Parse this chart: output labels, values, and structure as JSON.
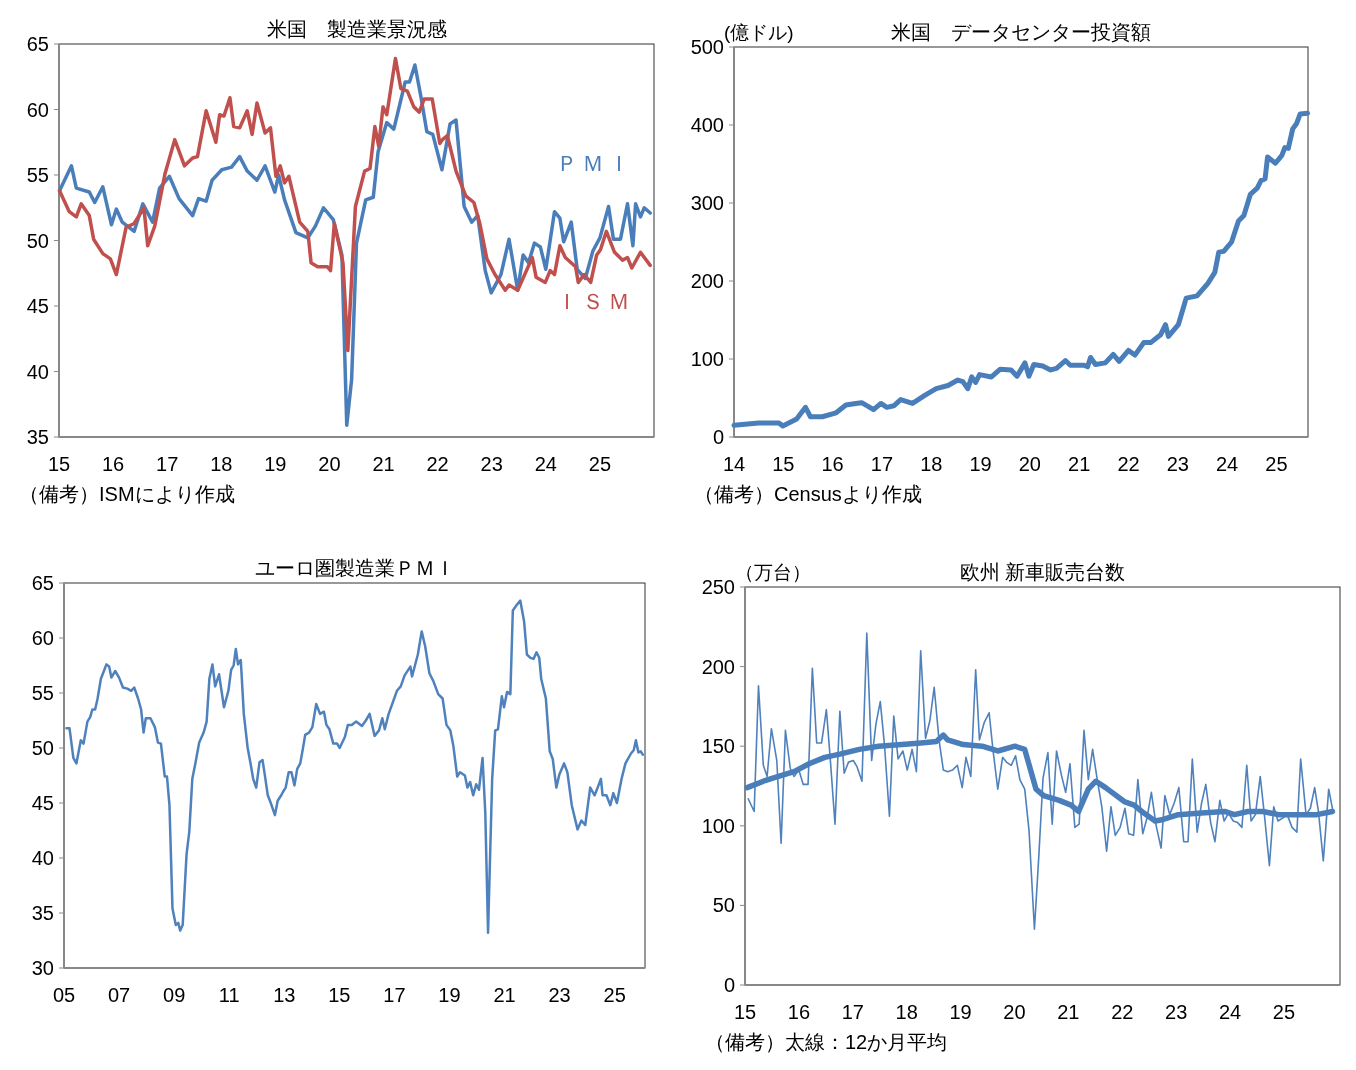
{
  "chart_data": [
    {
      "type": "line",
      "title": "米国　製造業景況感",
      "xlim": [
        2015,
        2026
      ],
      "xticks": [
        {
          "value": 2015,
          "label": "15"
        },
        {
          "value": 2016,
          "label": "16"
        },
        {
          "value": 2017,
          "label": "17"
        },
        {
          "value": 2018,
          "label": "18"
        },
        {
          "value": 2019,
          "label": "19"
        },
        {
          "value": 2020,
          "label": "20"
        },
        {
          "value": 2021,
          "label": "21"
        },
        {
          "value": 2022,
          "label": "22"
        },
        {
          "value": 2023,
          "label": "23"
        },
        {
          "value": 2024,
          "label": "24"
        },
        {
          "value": 2025,
          "label": "25"
        }
      ],
      "ylim": [
        35,
        65
      ],
      "yticks": [
        35,
        40,
        45,
        50,
        55,
        60,
        65
      ],
      "annotations": [
        "（備考）ISMにより作成"
      ],
      "series": [
        {
          "name": "ＰＭＩ",
          "color": "#4a7ebb",
          "x": [
            2015.01,
            2015.23,
            2015.32,
            2015.56,
            2015.66,
            2015.81,
            2015.97,
            2016.06,
            2016.17,
            2016.39,
            2016.55,
            2016.73,
            2016.86,
            2017.04,
            2017.22,
            2017.47,
            2017.58,
            2017.72,
            2017.83,
            2018.01,
            2018.19,
            2018.34,
            2018.48,
            2018.66,
            2018.81,
            2018.99,
            2019.06,
            2019.17,
            2019.38,
            2019.6,
            2019.74,
            2019.89,
            2020.07,
            2020.23,
            2020.32,
            2020.41,
            2020.5,
            2020.67,
            2020.81,
            2020.9,
            2021.06,
            2021.19,
            2021.4,
            2021.48,
            2021.58,
            2021.69,
            2021.8,
            2021.91,
            2022.08,
            2022.23,
            2022.34,
            2022.49,
            2022.63,
            2022.74,
            2022.88,
            2022.99,
            2023.17,
            2023.32,
            2023.48,
            2023.58,
            2023.68,
            2023.79,
            2023.9,
            2024.0,
            2024.16,
            2024.26,
            2024.33,
            2024.47,
            2024.58,
            2024.73,
            2024.87,
            2025.0,
            2025.16,
            2025.25,
            2025.38,
            2025.51,
            2025.61,
            2025.66,
            2025.75,
            2025.82,
            2025.93
          ],
          "values": [
            53.8,
            55.7,
            54.0,
            53.7,
            52.9,
            54.1,
            51.2,
            52.4,
            51.4,
            50.7,
            52.8,
            51.4,
            54.0,
            54.9,
            53.2,
            51.9,
            53.2,
            53.0,
            54.6,
            55.4,
            55.6,
            56.4,
            55.3,
            54.6,
            55.7,
            53.7,
            55.0,
            53.1,
            50.6,
            50.2,
            51.1,
            52.5,
            51.6,
            48.9,
            35.9,
            39.4,
            49.8,
            53.1,
            53.3,
            56.8,
            59.0,
            58.5,
            62.1,
            62.1,
            63.4,
            61.0,
            58.3,
            58.1,
            55.4,
            58.9,
            59.2,
            52.6,
            51.4,
            51.9,
            47.7,
            46.0,
            47.4,
            50.1,
            46.2,
            48.9,
            48.3,
            49.8,
            49.5,
            47.8,
            52.2,
            51.7,
            49.9,
            51.4,
            47.8,
            47.1,
            49.2,
            50.2,
            52.6,
            50.1,
            50.1,
            52.8,
            49.6,
            52.8,
            51.8,
            52.5,
            52.1
          ]
        },
        {
          "name": "ＩＳＭ",
          "color": "#c0504d",
          "x": [
            2015.01,
            2015.19,
            2015.32,
            2015.41,
            2015.56,
            2015.64,
            2015.81,
            2015.95,
            2016.06,
            2016.24,
            2016.39,
            2016.57,
            2016.64,
            2016.77,
            2016.96,
            2017.14,
            2017.32,
            2017.47,
            2017.56,
            2017.72,
            2017.9,
            2017.97,
            2018.05,
            2018.16,
            2018.23,
            2018.34,
            2018.48,
            2018.57,
            2018.66,
            2018.81,
            2018.91,
            2019.01,
            2019.09,
            2019.17,
            2019.25,
            2019.45,
            2019.6,
            2019.66,
            2019.78,
            2019.96,
            2020.02,
            2020.09,
            2020.25,
            2020.34,
            2020.48,
            2020.65,
            2020.75,
            2020.84,
            2020.91,
            2020.99,
            2021.06,
            2021.22,
            2021.32,
            2021.44,
            2021.56,
            2021.66,
            2021.75,
            2021.9,
            2022.04,
            2022.09,
            2022.18,
            2022.34,
            2022.52,
            2022.67,
            2022.78,
            2022.91,
            2023.06,
            2023.25,
            2023.32,
            2023.48,
            2023.61,
            2023.75,
            2023.82,
            2023.99,
            2024.08,
            2024.16,
            2024.26,
            2024.36,
            2024.55,
            2024.6,
            2024.71,
            2024.83,
            2024.94,
            2025.01,
            2025.12,
            2025.27,
            2025.42,
            2025.51,
            2025.59,
            2025.75,
            2025.93
          ],
          "values": [
            53.8,
            52.2,
            51.8,
            52.8,
            51.9,
            50.1,
            49.0,
            48.6,
            47.4,
            51.0,
            51.3,
            52.5,
            49.6,
            51.1,
            55.1,
            57.7,
            55.7,
            56.3,
            56.4,
            59.9,
            57.5,
            59.6,
            59.5,
            60.9,
            58.7,
            58.6,
            59.9,
            58.1,
            60.5,
            58.2,
            58.6,
            54.9,
            55.7,
            54.4,
            54.9,
            51.4,
            50.7,
            48.3,
            48.0,
            48.0,
            47.7,
            51.3,
            48.3,
            41.6,
            52.6,
            55.3,
            55.5,
            58.7,
            57.2,
            60.2,
            59.6,
            63.9,
            61.6,
            61.4,
            60.2,
            59.8,
            60.8,
            60.8,
            57.4,
            57.7,
            58.0,
            55.3,
            53.4,
            52.9,
            51.3,
            48.6,
            47.4,
            46.2,
            46.6,
            46.2,
            47.4,
            48.7,
            47.2,
            46.8,
            47.7,
            47.4,
            49.6,
            48.7,
            48.0,
            46.8,
            47.4,
            46.8,
            48.9,
            49.3,
            50.7,
            49.1,
            48.5,
            48.7,
            47.9,
            49.1,
            48.1
          ]
        }
      ]
    },
    {
      "type": "line",
      "title": "米国　データセンター投資額",
      "ylabel": "(億ドル)",
      "xlim": [
        2014,
        2025.64
      ],
      "xticks": [
        {
          "value": 2014,
          "label": "14"
        },
        {
          "value": 2015,
          "label": "15"
        },
        {
          "value": 2016,
          "label": "16"
        },
        {
          "value": 2017,
          "label": "17"
        },
        {
          "value": 2018,
          "label": "18"
        },
        {
          "value": 2019,
          "label": "19"
        },
        {
          "value": 2020,
          "label": "20"
        },
        {
          "value": 2021,
          "label": "21"
        },
        {
          "value": 2022,
          "label": "22"
        },
        {
          "value": 2023,
          "label": "23"
        },
        {
          "value": 2024,
          "label": "24"
        },
        {
          "value": 2025,
          "label": "25"
        }
      ],
      "ylim": [
        0,
        500
      ],
      "yticks": [
        0,
        100,
        200,
        300,
        400,
        500
      ],
      "annotations": [
        "（備考）Censusより作成"
      ],
      "series": [
        {
          "color": "#4a7ebb",
          "x": [
            2014.0,
            2014.5,
            2014.91,
            2014.99,
            2015.27,
            2015.45,
            2015.55,
            2015.79,
            2016.07,
            2016.27,
            2016.47,
            2016.59,
            2016.83,
            2016.98,
            2017.1,
            2017.24,
            2017.38,
            2017.62,
            2017.86,
            2018.1,
            2018.34,
            2018.54,
            2018.64,
            2018.74,
            2018.82,
            2018.9,
            2018.98,
            2019.22,
            2019.4,
            2019.62,
            2019.74,
            2019.9,
            2019.98,
            2020.08,
            2020.26,
            2020.42,
            2020.54,
            2020.72,
            2020.82,
            2021.1,
            2021.17,
            2021.23,
            2021.33,
            2021.53,
            2021.69,
            2021.81,
            2022.0,
            2022.13,
            2022.31,
            2022.45,
            2022.65,
            2022.75,
            2022.81,
            2023.01,
            2023.17,
            2023.39,
            2023.61,
            2023.75,
            2023.83,
            2023.93,
            2024.09,
            2024.23,
            2024.34,
            2024.47,
            2024.61,
            2024.69,
            2024.77,
            2024.82,
            2024.98,
            2025.11,
            2025.17,
            2025.24,
            2025.33,
            2025.41,
            2025.48,
            2025.63
          ],
          "values": [
            15,
            18,
            18,
            14,
            23,
            38,
            26,
            26,
            31,
            41,
            43,
            44,
            35,
            43,
            38,
            40,
            48,
            43,
            53,
            62,
            66,
            73,
            71,
            62,
            77,
            70,
            80,
            77,
            87,
            86,
            78,
            95,
            78,
            93,
            91,
            86,
            88,
            98,
            92,
            92,
            90,
            102,
            93,
            95,
            106,
            97,
            111,
            105,
            121,
            121,
            131,
            144,
            129,
            144,
            178,
            181,
            197,
            211,
            237,
            238,
            250,
            277,
            284,
            311,
            319,
            329,
            331,
            359,
            351,
            361,
            371,
            370,
            395,
            402,
            414,
            415
          ]
        }
      ]
    },
    {
      "type": "line",
      "title": "ユーロ圏製造業ＰＭＩ",
      "xlim": [
        2005,
        2026.1
      ],
      "xticks": [
        {
          "value": 2005,
          "label": "05"
        },
        {
          "value": 2007,
          "label": "07"
        },
        {
          "value": 2009,
          "label": "09"
        },
        {
          "value": 2011,
          "label": "11"
        },
        {
          "value": 2013,
          "label": "13"
        },
        {
          "value": 2015,
          "label": "15"
        },
        {
          "value": 2017,
          "label": "17"
        },
        {
          "value": 2019,
          "label": "19"
        },
        {
          "value": 2021,
          "label": "21"
        },
        {
          "value": 2023,
          "label": "23"
        },
        {
          "value": 2025,
          "label": "25"
        }
      ],
      "ylim": [
        30,
        65
      ],
      "yticks": [
        30,
        35,
        40,
        45,
        50,
        55,
        60,
        65
      ],
      "series": [
        {
          "color": "#4f81bd",
          "x": [
            2005.09,
            2005.2,
            2005.34,
            2005.45,
            2005.61,
            2005.71,
            2005.85,
            2005.95,
            2006.03,
            2006.13,
            2006.22,
            2006.34,
            2006.45,
            2006.54,
            2006.64,
            2006.72,
            2006.86,
            2007.0,
            2007.14,
            2007.3,
            2007.44,
            2007.55,
            2007.69,
            2007.8,
            2007.89,
            2007.97,
            2008.14,
            2008.3,
            2008.41,
            2008.52,
            2008.66,
            2008.74,
            2008.83,
            2008.94,
            2009.06,
            2009.15,
            2009.22,
            2009.31,
            2009.45,
            2009.55,
            2009.66,
            2009.77,
            2009.91,
            2010.07,
            2010.18,
            2010.28,
            2010.39,
            2010.49,
            2010.63,
            2010.81,
            2010.97,
            2011.07,
            2011.16,
            2011.24,
            2011.32,
            2011.42,
            2011.53,
            2011.67,
            2011.76,
            2011.87,
            2011.98,
            2012.1,
            2012.21,
            2012.29,
            2012.4,
            2012.51,
            2012.66,
            2012.76,
            2012.89,
            2012.95,
            2013.05,
            2013.16,
            2013.26,
            2013.37,
            2013.47,
            2013.58,
            2013.68,
            2013.76,
            2013.9,
            2014.02,
            2014.16,
            2014.3,
            2014.44,
            2014.53,
            2014.64,
            2014.78,
            2014.92,
            2015.01,
            2015.2,
            2015.31,
            2015.45,
            2015.61,
            2015.82,
            2015.96,
            2016.1,
            2016.28,
            2016.44,
            2016.56,
            2016.65,
            2016.79,
            2016.95,
            2017.09,
            2017.23,
            2017.37,
            2017.58,
            2017.64,
            2017.85,
            2017.99,
            2018.12,
            2018.27,
            2018.41,
            2018.59,
            2018.75,
            2018.89,
            2019.03,
            2019.14,
            2019.28,
            2019.38,
            2019.56,
            2019.65,
            2019.75,
            2019.86,
            2019.97,
            2020.07,
            2020.2,
            2020.3,
            2020.4,
            2020.55,
            2020.66,
            2020.76,
            2020.9,
            2020.98,
            2021.09,
            2021.21,
            2021.3,
            2021.44,
            2021.57,
            2021.71,
            2021.81,
            2021.94,
            2022.05,
            2022.16,
            2022.26,
            2022.33,
            2022.5,
            2022.64,
            2022.75,
            2022.88,
            2022.99,
            2023.16,
            2023.28,
            2023.44,
            2023.65,
            2023.79,
            2023.93,
            2024.11,
            2024.27,
            2024.38,
            2024.5,
            2024.56,
            2024.7,
            2024.84,
            2024.95,
            2025.08,
            2025.25,
            2025.39,
            2025.59,
            2025.69,
            2025.77,
            2025.86,
            2025.94,
            2026.02
          ],
          "values": [
            51.8,
            51.8,
            49.1,
            48.6,
            50.7,
            50.4,
            52.4,
            52.8,
            53.5,
            53.5,
            54.5,
            56.3,
            57.0,
            57.6,
            57.4,
            56.4,
            57.0,
            56.4,
            55.5,
            55.4,
            55.2,
            55.5,
            54.5,
            53.5,
            51.4,
            52.7,
            52.7,
            51.9,
            50.5,
            50.4,
            47.4,
            47.4,
            44.8,
            35.4,
            33.9,
            34.1,
            33.4,
            33.9,
            40.3,
            42.4,
            47.2,
            48.6,
            50.5,
            51.4,
            52.4,
            56.3,
            57.6,
            55.6,
            56.7,
            53.7,
            55.2,
            57.1,
            57.5,
            59.0,
            57.6,
            58.0,
            53.1,
            50.0,
            48.8,
            47.2,
            46.4,
            48.7,
            48.9,
            47.6,
            45.7,
            45.0,
            43.9,
            45.2,
            45.7,
            46.0,
            46.4,
            47.8,
            47.8,
            46.6,
            48.1,
            48.6,
            50.0,
            51.2,
            51.4,
            51.9,
            54.0,
            53.1,
            53.3,
            52.1,
            51.7,
            50.4,
            50.4,
            50.0,
            51.0,
            52.1,
            52.1,
            52.4,
            52.0,
            52.5,
            53.1,
            51.1,
            51.6,
            52.7,
            51.7,
            53.1,
            54.2,
            55.2,
            55.6,
            56.6,
            57.4,
            56.5,
            58.5,
            60.6,
            59.2,
            56.8,
            56.1,
            54.9,
            54.5,
            52.1,
            51.6,
            50.2,
            47.4,
            47.8,
            47.5,
            46.4,
            46.9,
            45.7,
            46.7,
            46.2,
            49.1,
            44.1,
            33.2,
            47.2,
            51.6,
            51.7,
            54.7,
            53.7,
            55.1,
            54.9,
            62.5,
            63.0,
            63.4,
            61.5,
            58.5,
            58.2,
            58.1,
            58.7,
            58.2,
            56.3,
            54.5,
            49.7,
            49.0,
            46.4,
            47.6,
            48.6,
            47.8,
            44.8,
            42.6,
            43.4,
            43.0,
            46.4,
            45.7,
            46.4,
            47.2,
            45.7,
            45.7,
            44.8,
            45.9,
            45.0,
            47.2,
            48.6,
            49.5,
            49.8,
            50.7,
            49.6,
            49.7,
            49.4
          ]
        }
      ]
    },
    {
      "type": "line",
      "title": "欧州 新車販売台数",
      "ylabel": "（万台）",
      "xlim": [
        2015,
        2026.04
      ],
      "xticks": [
        {
          "value": 2015,
          "label": "15"
        },
        {
          "value": 2016,
          "label": "16"
        },
        {
          "value": 2017,
          "label": "17"
        },
        {
          "value": 2018,
          "label": "18"
        },
        {
          "value": 2019,
          "label": "19"
        },
        {
          "value": 2020,
          "label": "20"
        },
        {
          "value": 2021,
          "label": "21"
        },
        {
          "value": 2022,
          "label": "22"
        },
        {
          "value": 2023,
          "label": "23"
        },
        {
          "value": 2024,
          "label": "24"
        },
        {
          "value": 2025,
          "label": "25"
        }
      ],
      "ylim": [
        0,
        250
      ],
      "yticks": [
        0,
        50,
        100,
        150,
        200,
        250
      ],
      "annotations": [
        "（備考）太線：12か月平均"
      ],
      "series": [
        {
          "color": "#4f81bd",
          "x": [
            2015.06,
            2015.17,
            2015.25,
            2015.34,
            2015.41,
            2015.49,
            2015.59,
            2015.67,
            2015.75,
            2015.84,
            2015.91,
            2016.0,
            2016.08,
            2016.17,
            2016.25,
            2016.33,
            2016.42,
            2016.51,
            2016.58,
            2016.67,
            2016.76,
            2016.84,
            2016.92,
            2017.01,
            2017.08,
            2017.17,
            2017.26,
            2017.35,
            2017.43,
            2017.51,
            2017.59,
            2017.68,
            2017.76,
            2017.84,
            2017.93,
            2018.01,
            2018.1,
            2018.18,
            2018.26,
            2018.35,
            2018.43,
            2018.51,
            2018.6,
            2018.68,
            2018.76,
            2018.85,
            2018.94,
            2019.03,
            2019.1,
            2019.19,
            2019.28,
            2019.35,
            2019.44,
            2019.53,
            2019.6,
            2019.69,
            2019.78,
            2019.85,
            2019.94,
            2020.02,
            2020.1,
            2020.19,
            2020.27,
            2020.37,
            2020.45,
            2020.53,
            2020.62,
            2020.7,
            2020.78,
            2020.87,
            2020.95,
            2021.03,
            2021.12,
            2021.2,
            2021.29,
            2021.37,
            2021.45,
            2021.54,
            2021.62,
            2021.71,
            2021.79,
            2021.87,
            2021.96,
            2022.05,
            2022.12,
            2022.21,
            2022.29,
            2022.38,
            2022.46,
            2022.54,
            2022.63,
            2022.72,
            2022.79,
            2022.88,
            2022.97,
            2023.05,
            2023.14,
            2023.22,
            2023.3,
            2023.39,
            2023.47,
            2023.55,
            2023.64,
            2023.72,
            2023.81,
            2023.89,
            2023.97,
            2024.06,
            2024.14,
            2024.22,
            2024.31,
            2024.39,
            2024.47,
            2024.56,
            2024.64,
            2024.73,
            2024.81,
            2024.89,
            2024.98,
            2025.06,
            2025.15,
            2025.24,
            2025.31,
            2025.41,
            2025.49,
            2025.57,
            2025.64,
            2025.73,
            2025.83,
            2025.91
          ],
          "values": [
            117,
            109,
            188,
            138,
            131,
            161,
            141,
            89,
            160,
            136,
            131,
            135,
            126,
            126,
            199,
            152,
            152,
            173,
            143,
            101,
            172,
            133,
            140,
            141,
            137,
            128,
            221,
            141,
            164,
            178,
            150,
            106,
            169,
            142,
            147,
            135,
            148,
            134,
            210,
            155,
            166,
            187,
            154,
            135,
            134,
            135,
            138,
            124,
            143,
            131,
            198,
            154,
            165,
            171,
            148,
            123,
            143,
            140,
            138,
            144,
            129,
            123,
            97,
            35,
            80,
            130,
            146,
            101,
            147,
            132,
            121,
            139,
            99,
            101,
            160,
            129,
            148,
            128,
            112,
            84,
            112,
            94,
            99,
            111,
            95,
            94,
            129,
            95,
            105,
            121,
            100,
            86,
            119,
            107,
            115,
            124,
            90,
            90,
            142,
            96,
            114,
            126,
            102,
            90,
            116,
            103,
            108,
            103,
            102,
            99,
            138,
            103,
            107,
            131,
            106,
            75,
            112,
            103,
            105,
            107,
            99,
            96,
            142,
            107,
            111,
            124,
            109,
            78,
            123,
            109
          ]
        },
        {
          "color": "#4a7ebb",
          "x": [
            2015.04,
            2015.34,
            2015.62,
            2015.91,
            2016.19,
            2016.48,
            2016.76,
            2017.12,
            2017.48,
            2017.91,
            2018.26,
            2018.55,
            2018.68,
            2018.76,
            2019.05,
            2019.4,
            2019.69,
            2020.01,
            2020.19,
            2020.4,
            2020.54,
            2020.83,
            2021.05,
            2021.19,
            2021.37,
            2021.51,
            2021.69,
            2022.05,
            2022.22,
            2022.4,
            2022.61,
            2022.76,
            2023.04,
            2023.47,
            2023.9,
            2024.08,
            2024.33,
            2024.61,
            2024.9,
            2025.26,
            2025.61,
            2025.9
          ],
          "values": [
            124,
            128,
            131,
            134,
            139,
            143,
            145,
            148,
            150,
            151,
            152,
            153,
            157,
            154,
            151,
            150,
            147,
            150,
            148,
            123,
            119,
            116,
            113,
            109,
            123,
            128,
            124,
            115,
            113,
            108,
            103,
            104,
            107,
            108,
            109,
            107,
            109,
            109,
            107,
            107,
            107,
            109
          ]
        }
      ]
    }
  ]
}
